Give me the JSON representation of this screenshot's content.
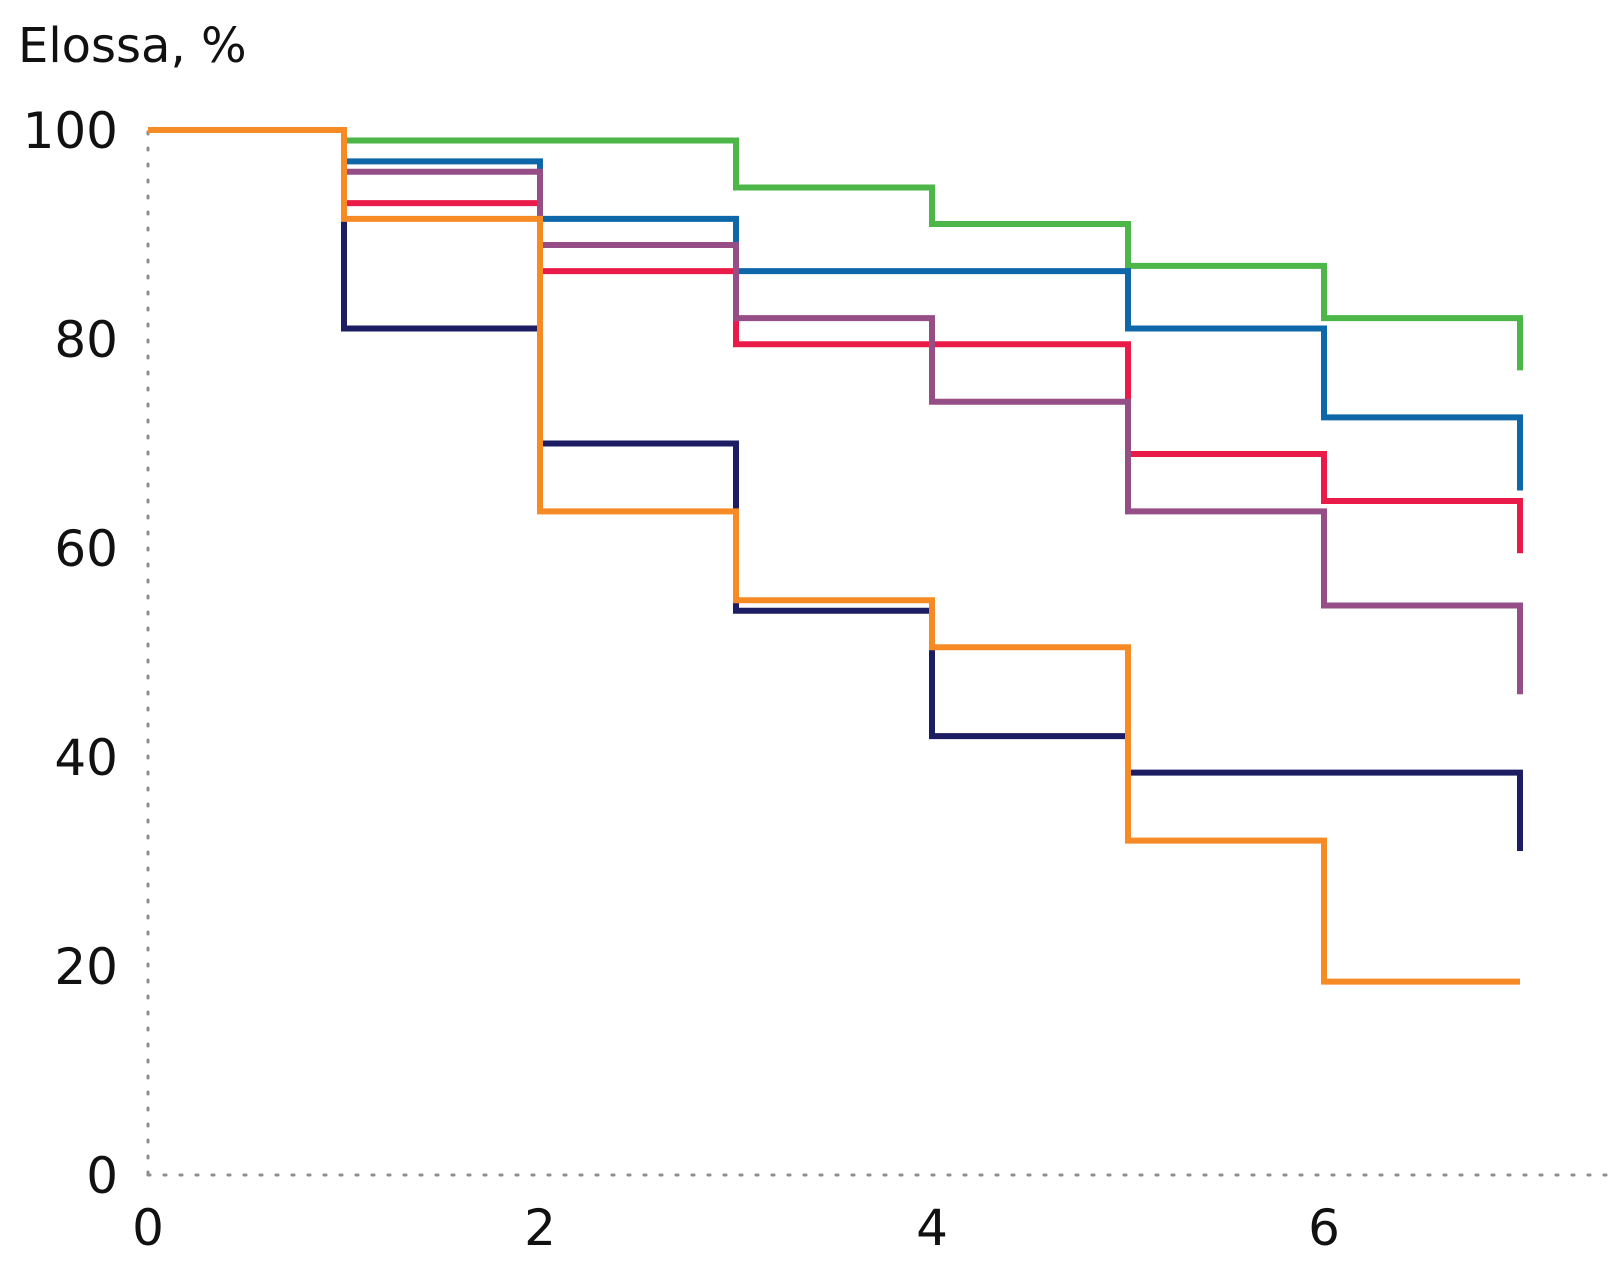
{
  "chart_data": {
    "type": "line",
    "step": true,
    "ylabel": "Elossa, %",
    "xlabel": "",
    "xlim": [
      0,
      7.5
    ],
    "ylim": [
      0,
      100
    ],
    "x_ticks": [
      0,
      2,
      4,
      6
    ],
    "y_ticks": [
      0,
      20,
      40,
      60,
      80,
      100
    ],
    "grid": false,
    "legend": "none",
    "x": [
      0,
      1,
      2,
      3,
      4,
      5,
      6,
      7
    ],
    "series": [
      {
        "color": "#4cb648",
        "values": [
          100,
          99,
          99,
          94.5,
          91,
          87,
          82,
          77
        ]
      },
      {
        "color": "#0e67a9",
        "values": [
          100,
          97,
          91.5,
          86.5,
          86.5,
          81,
          72.5,
          65.5
        ]
      },
      {
        "color": "#ea1b48",
        "values": [
          100,
          93,
          86.5,
          79.5,
          79.5,
          69,
          64.5,
          59.5
        ]
      },
      {
        "color": "#964f86",
        "values": [
          100,
          96,
          89,
          82,
          74,
          63.5,
          54.5,
          46
        ]
      },
      {
        "color": "#1c1d63",
        "values": [
          100,
          81,
          70,
          54,
          42,
          38.5,
          38.5,
          31
        ]
      },
      {
        "color": "#f68b26",
        "values": [
          100,
          91.5,
          63.5,
          55,
          50.5,
          32,
          18.5,
          18.5
        ]
      }
    ]
  }
}
